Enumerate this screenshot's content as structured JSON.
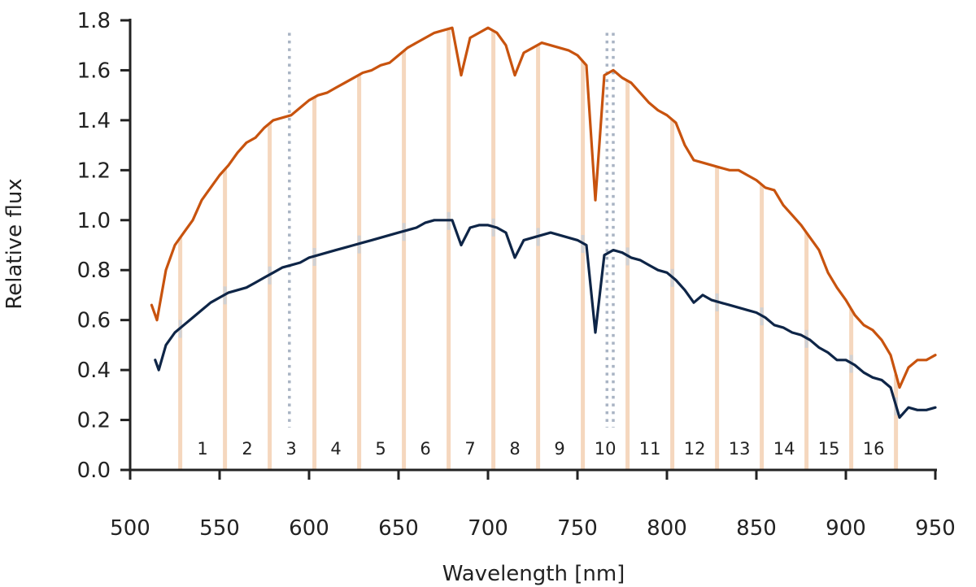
{
  "chart_data": {
    "type": "line",
    "title": "",
    "xlabel": "Wavelength [nm]",
    "ylabel": "Relative flux",
    "xlim": [
      500,
      950
    ],
    "ylim": [
      0,
      1.8
    ],
    "xticks": [
      500,
      550,
      600,
      650,
      700,
      750,
      800,
      850,
      900,
      950
    ],
    "yticks": [
      "0.0",
      "0.2",
      "0.4",
      "0.6",
      "0.8",
      "1.0",
      "1.2",
      "1.4",
      "1.6",
      "1.8"
    ],
    "grid": false,
    "legend": null,
    "colors": {
      "upper": "#c8530e",
      "lower": "#0e2547",
      "band_fill": "#f2c9a8",
      "lower_band_fill": "#c7d0da",
      "vline": "#a9b4c4",
      "axis": "#222222"
    },
    "vertical_lines_nm": [
      589,
      766.5,
      770
    ],
    "bins": [
      {
        "label": "1",
        "center": 540.5
      },
      {
        "label": "2",
        "center": 565.5
      },
      {
        "label": "3",
        "center": 590
      },
      {
        "label": "4",
        "center": 615
      },
      {
        "label": "5",
        "center": 640
      },
      {
        "label": "6",
        "center": 665
      },
      {
        "label": "7",
        "center": 690
      },
      {
        "label": "8",
        "center": 715
      },
      {
        "label": "9",
        "center": 740
      },
      {
        "label": "10",
        "center": 765.5
      },
      {
        "label": "11",
        "center": 790.5
      },
      {
        "label": "12",
        "center": 815.5
      },
      {
        "label": "13",
        "center": 840.5
      },
      {
        "label": "14",
        "center": 865.5
      },
      {
        "label": "15",
        "center": 890.5
      },
      {
        "label": "16",
        "center": 915.5
      }
    ],
    "bin_edges_nm": [
      528,
      553,
      578,
      603,
      628,
      653,
      678,
      703,
      728,
      753,
      778,
      803,
      828,
      853,
      878,
      903,
      928
    ],
    "series": [
      {
        "key": "upper",
        "x": [
          512,
          515,
          520,
          525,
          530,
          535,
          540,
          545,
          550,
          555,
          560,
          565,
          570,
          575,
          580,
          585,
          590,
          595,
          600,
          605,
          610,
          615,
          620,
          625,
          630,
          635,
          640,
          645,
          650,
          655,
          660,
          665,
          670,
          675,
          680,
          685,
          690,
          695,
          700,
          705,
          710,
          715,
          720,
          725,
          730,
          735,
          740,
          745,
          750,
          755,
          760,
          765,
          770,
          775,
          780,
          785,
          790,
          795,
          800,
          805,
          810,
          815,
          820,
          825,
          830,
          835,
          840,
          845,
          850,
          855,
          860,
          865,
          870,
          875,
          880,
          885,
          890,
          895,
          900,
          905,
          910,
          915,
          920,
          925,
          930,
          935,
          940,
          945,
          950
        ],
        "y": [
          0.66,
          0.6,
          0.8,
          0.9,
          0.95,
          1.0,
          1.08,
          1.13,
          1.18,
          1.22,
          1.27,
          1.31,
          1.33,
          1.37,
          1.4,
          1.41,
          1.42,
          1.45,
          1.48,
          1.5,
          1.51,
          1.53,
          1.55,
          1.57,
          1.59,
          1.6,
          1.62,
          1.63,
          1.66,
          1.69,
          1.71,
          1.73,
          1.75,
          1.76,
          1.77,
          1.58,
          1.73,
          1.75,
          1.77,
          1.75,
          1.7,
          1.58,
          1.67,
          1.69,
          1.71,
          1.7,
          1.69,
          1.68,
          1.66,
          1.62,
          1.08,
          1.58,
          1.6,
          1.57,
          1.55,
          1.51,
          1.47,
          1.44,
          1.42,
          1.39,
          1.3,
          1.24,
          1.23,
          1.22,
          1.21,
          1.2,
          1.2,
          1.18,
          1.16,
          1.13,
          1.12,
          1.06,
          1.02,
          0.98,
          0.93,
          0.88,
          0.79,
          0.73,
          0.68,
          0.62,
          0.58,
          0.56,
          0.52,
          0.46,
          0.33,
          0.41,
          0.44,
          0.44,
          0.46
        ]
      },
      {
        "key": "lower",
        "x": [
          514,
          516,
          520,
          525,
          530,
          535,
          540,
          545,
          550,
          555,
          560,
          565,
          570,
          575,
          580,
          585,
          590,
          595,
          600,
          605,
          610,
          615,
          620,
          625,
          630,
          635,
          640,
          645,
          650,
          655,
          660,
          665,
          670,
          675,
          680,
          685,
          690,
          695,
          700,
          705,
          710,
          715,
          720,
          725,
          730,
          735,
          740,
          745,
          750,
          755,
          760,
          765,
          770,
          775,
          780,
          785,
          790,
          795,
          800,
          805,
          810,
          815,
          820,
          825,
          830,
          835,
          840,
          845,
          850,
          855,
          860,
          865,
          870,
          875,
          880,
          885,
          890,
          895,
          900,
          905,
          910,
          915,
          920,
          925,
          930,
          935,
          940,
          945,
          950
        ],
        "y": [
          0.44,
          0.4,
          0.5,
          0.55,
          0.58,
          0.61,
          0.64,
          0.67,
          0.69,
          0.71,
          0.72,
          0.73,
          0.75,
          0.77,
          0.79,
          0.81,
          0.82,
          0.83,
          0.85,
          0.86,
          0.87,
          0.88,
          0.89,
          0.9,
          0.91,
          0.92,
          0.93,
          0.94,
          0.95,
          0.96,
          0.97,
          0.99,
          1.0,
          1.0,
          1.0,
          0.9,
          0.97,
          0.98,
          0.98,
          0.97,
          0.95,
          0.85,
          0.92,
          0.93,
          0.94,
          0.95,
          0.94,
          0.93,
          0.92,
          0.9,
          0.55,
          0.86,
          0.88,
          0.87,
          0.85,
          0.84,
          0.82,
          0.8,
          0.79,
          0.76,
          0.72,
          0.67,
          0.7,
          0.68,
          0.67,
          0.66,
          0.65,
          0.64,
          0.63,
          0.61,
          0.58,
          0.57,
          0.55,
          0.54,
          0.52,
          0.49,
          0.47,
          0.44,
          0.44,
          0.42,
          0.39,
          0.37,
          0.36,
          0.33,
          0.21,
          0.25,
          0.24,
          0.24,
          0.25
        ]
      }
    ]
  }
}
